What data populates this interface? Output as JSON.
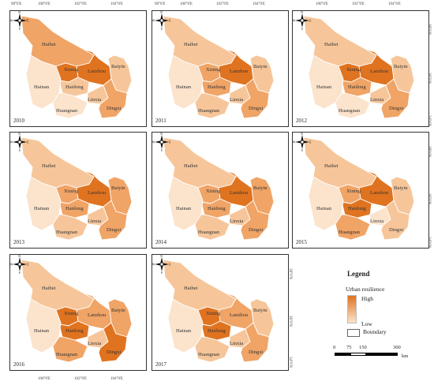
{
  "legend": {
    "title": "Legend",
    "subtitle": "Urban resilience",
    "high": "High",
    "low": "Low",
    "boundary": "Boundary",
    "colors": {
      "high": "#e0731f",
      "low": "#fbe3cc"
    }
  },
  "scale": {
    "labels": [
      "0",
      "75",
      "150",
      "300"
    ],
    "unit": "km"
  },
  "compass": {
    "n": "N",
    "s": "S",
    "e": "E",
    "w": "W"
  },
  "longitude_ticks": [
    "98°0'E",
    "100°0'E",
    "102°0'E",
    "104°0'E"
  ],
  "latitude_ticks": [
    "38°0'N",
    "36°0'N",
    "34°0'N"
  ],
  "region_names": [
    "Haibei",
    "Xining",
    "Haidong",
    "Lanzhou",
    "Baiyin",
    "Hainan",
    "Linxia",
    "Huangnan",
    "Dingxi"
  ],
  "color_scale": [
    "#fbe3cc",
    "#f6c69a",
    "#f0a466",
    "#e0731f"
  ],
  "maps": [
    {
      "year": "2010",
      "levels": {
        "Haibei": 2,
        "Xining": 3,
        "Haidong": 1,
        "Lanzhou": 3,
        "Baiyin": 1,
        "Hainan": 0,
        "Linxia": 1,
        "Huangnan": 0,
        "Dingxi": 2
      }
    },
    {
      "year": "2011",
      "levels": {
        "Haibei": 1,
        "Xining": 2,
        "Haidong": 2,
        "Lanzhou": 3,
        "Baiyin": 1,
        "Hainan": 0,
        "Linxia": 1,
        "Huangnan": 1,
        "Dingxi": 2
      }
    },
    {
      "year": "2012",
      "levels": {
        "Haibei": 1,
        "Xining": 3,
        "Haidong": 2,
        "Lanzhou": 3,
        "Baiyin": 1,
        "Hainan": 0,
        "Linxia": 1,
        "Huangnan": 0,
        "Dingxi": 2
      }
    },
    {
      "year": "2013",
      "levels": {
        "Haibei": 1,
        "Xining": 2,
        "Haidong": 2,
        "Lanzhou": 3,
        "Baiyin": 2,
        "Hainan": 0,
        "Linxia": 1,
        "Huangnan": 1,
        "Dingxi": 2
      }
    },
    {
      "year": "2014",
      "levels": {
        "Haibei": 1,
        "Xining": 2,
        "Haidong": 2,
        "Lanzhou": 3,
        "Baiyin": 2,
        "Hainan": 0,
        "Linxia": 1,
        "Huangnan": 1,
        "Dingxi": 2
      }
    },
    {
      "year": "2015",
      "levels": {
        "Haibei": 1,
        "Xining": 2,
        "Haidong": 3,
        "Lanzhou": 3,
        "Baiyin": 1,
        "Hainan": 0,
        "Linxia": 0,
        "Huangnan": 2,
        "Dingxi": 1
      }
    },
    {
      "year": "2016",
      "levels": {
        "Haibei": 1,
        "Xining": 3,
        "Haidong": 3,
        "Lanzhou": 2,
        "Baiyin": 2,
        "Hainan": 0,
        "Linxia": 1,
        "Huangnan": 2,
        "Dingxi": 3
      }
    },
    {
      "year": "2017",
      "levels": {
        "Haibei": 1,
        "Xining": 3,
        "Haidong": 3,
        "Lanzhou": 2,
        "Baiyin": 1,
        "Hainan": 0,
        "Linxia": 1,
        "Huangnan": 1,
        "Dingxi": 2
      }
    }
  ]
}
